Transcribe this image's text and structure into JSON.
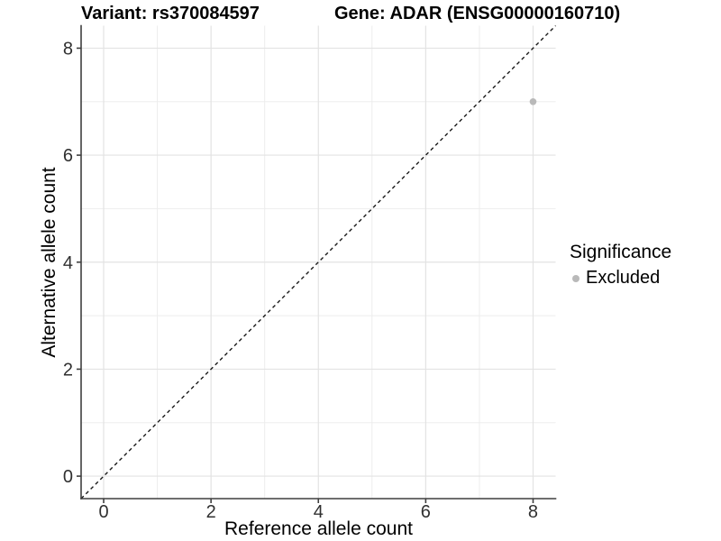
{
  "chart_data": {
    "type": "scatter",
    "titles": {
      "variant": "Variant: rs370084597",
      "gene": "Gene: ADAR (ENSG00000160710)"
    },
    "xlabel": "Reference allele count",
    "ylabel": "Alternative allele count",
    "xlim": [
      -0.42,
      8.42
    ],
    "ylim": [
      -0.42,
      8.42
    ],
    "x_ticks": [
      0,
      2,
      4,
      6,
      8
    ],
    "y_ticks": [
      0,
      2,
      4,
      6,
      8
    ],
    "x_minor_ticks": [
      1,
      3,
      5,
      7
    ],
    "y_minor_ticks": [
      1,
      3,
      5,
      7
    ],
    "grid": "major and minor gridlines, white panel",
    "reference_line": {
      "type": "identity y=x",
      "style": "dashed",
      "color": "#1a1a1a"
    },
    "series": [
      {
        "name": "Excluded",
        "marker": "circle",
        "color": "#b9b9b9",
        "points": [
          {
            "x": 8,
            "y": 7
          }
        ]
      }
    ],
    "legend": {
      "title": "Significance",
      "position": "right",
      "entries": [
        {
          "label": "Excluded",
          "color": "#b9b9b9",
          "marker": "circle"
        }
      ]
    }
  },
  "colors": {
    "background": "#ffffff",
    "grid_major": "#e3e3e3",
    "grid_minor": "#ededed",
    "axis": "#3f3f3f",
    "tick_text": "#303030",
    "point": "#b9b9b9"
  }
}
